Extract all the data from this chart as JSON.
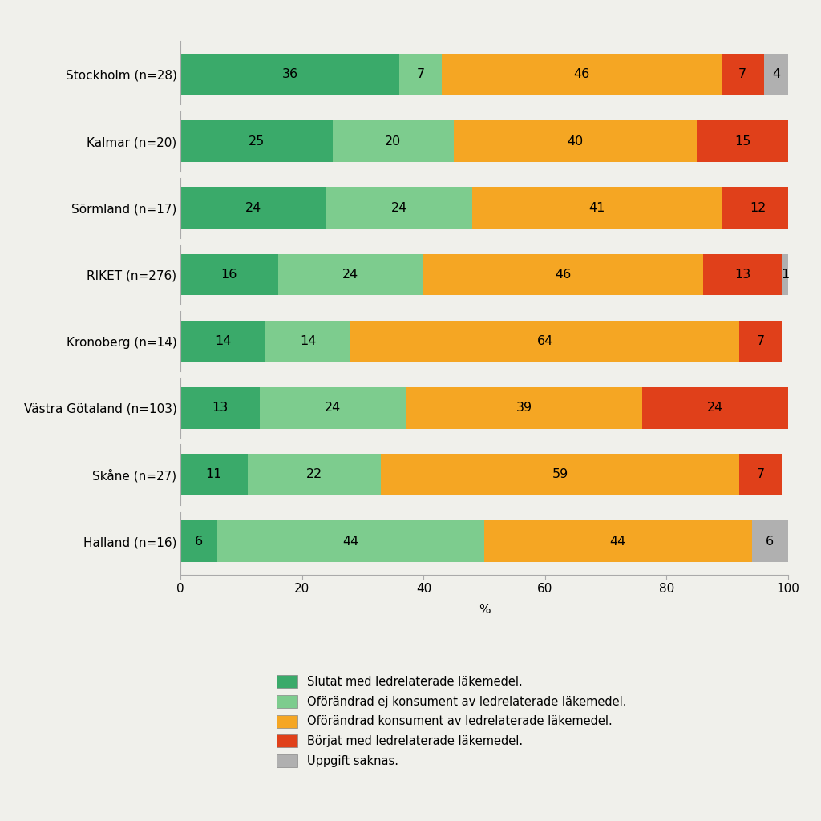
{
  "categories": [
    "Stockholm (n=28)",
    "Kalmar (n=20)",
    "Sörmland (n=17)",
    "RIKET (n=276)",
    "Kronoberg (n=14)",
    "Västra Götaland (n=103)",
    "Skåne (n=27)",
    "Halland (n=16)"
  ],
  "series": [
    {
      "label": "Slutat med ledrelaterade läkemedel.",
      "color": "#3aaa6a",
      "values": [
        36,
        25,
        24,
        16,
        14,
        13,
        11,
        6
      ]
    },
    {
      "label": "Oförändrad ej konsument av ledrelaterade läkemedel.",
      "color": "#7dcc8e",
      "values": [
        7,
        20,
        24,
        24,
        14,
        24,
        22,
        44
      ]
    },
    {
      "label": "Oförändrad konsument av ledrelaterade läkemedel.",
      "color": "#f5a623",
      "values": [
        46,
        40,
        41,
        46,
        64,
        39,
        59,
        44
      ]
    },
    {
      "label": "Börjat med ledrelaterade läkemedel.",
      "color": "#e0401a",
      "values": [
        7,
        15,
        12,
        13,
        7,
        24,
        7,
        0
      ]
    },
    {
      "label": "Uppgift saknas.",
      "color": "#b0b0b0",
      "values": [
        4,
        0,
        0,
        1,
        0,
        0,
        0,
        6
      ]
    }
  ],
  "xlim": [
    0,
    100
  ],
  "xlabel": "%",
  "background_color": "#f0f0eb",
  "bar_height": 0.62,
  "text_fontsize": 11.5,
  "label_fontsize": 11,
  "tick_fontsize": 11,
  "legend_fontsize": 10.5
}
